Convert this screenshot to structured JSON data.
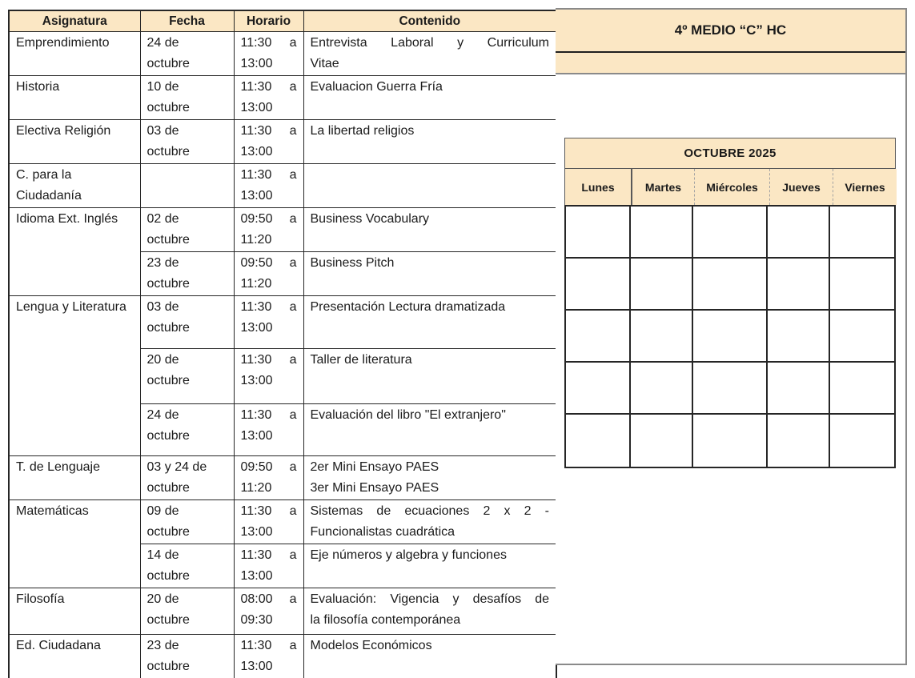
{
  "document": {
    "schedule": {
      "headers": [
        "Asignatura",
        "Fecha",
        "Horario",
        "Contenido"
      ],
      "sections": [
        {
          "asignatura": "Emprendimiento",
          "entries": [
            {
              "fecha": [
                "24 de",
                "octubre"
              ],
              "horario": [
                "11:30 a",
                "13:00"
              ],
              "contenido": [
                {
                  "text": "Entrevista Laboral y Curriculum",
                  "j": true
                },
                {
                  "text": "Vitae"
                }
              ]
            }
          ]
        },
        {
          "asignatura": "Historia",
          "entries": [
            {
              "fecha": [
                "10 de",
                "octubre"
              ],
              "horario": [
                "11:30 a",
                "13:00"
              ],
              "contenido": [
                {
                  "text": "Evaluacion Guerra Fría"
                }
              ]
            }
          ]
        },
        {
          "asignatura": "Electiva Religión",
          "entries": [
            {
              "fecha": [
                "03 de",
                "octubre"
              ],
              "horario": [
                "11:30 a",
                "13:00"
              ],
              "contenido": [
                {
                  "text": "La libertad religios"
                }
              ]
            }
          ]
        },
        {
          "asignatura": "C. para la Ciudadanía",
          "entries": [
            {
              "fecha": [],
              "horario": [
                "11:30 a",
                "13:00"
              ],
              "contenido": []
            }
          ]
        },
        {
          "asignatura": "Idioma Ext. Inglés",
          "entries": [
            {
              "fecha": [
                "02 de",
                "octubre"
              ],
              "horario": [
                "09:50 a",
                "11:20"
              ],
              "contenido": [
                {
                  "text": "Business Vocabulary"
                }
              ]
            },
            {
              "fecha": [
                "23 de",
                "octubre"
              ],
              "horario": [
                "09:50 a",
                "11:20"
              ],
              "contenido": [
                {
                  "text": "Business Pitch"
                }
              ]
            }
          ]
        },
        {
          "asignatura": "Lengua y Literatura",
          "entries": [
            {
              "fecha": [
                "03 de",
                "octubre"
              ],
              "horario": [
                "11:30 a",
                "13:00"
              ],
              "contenido": [
                {
                  "text": "Presentación Lectura dramatizada"
                }
              ]
            },
            {
              "fecha": [
                "20 de",
                "octubre"
              ],
              "horario": [
                "11:30 a",
                "13:00"
              ],
              "contenido": [
                {
                  "text": "Taller de literatura"
                }
              ]
            },
            {
              "fecha": [
                "24 de",
                "octubre"
              ],
              "horario": [
                "11:30 a",
                "13:00"
              ],
              "contenido": [
                {
                  "text": "Evaluación del libro \"El extranjero\""
                }
              ]
            }
          ]
        },
        {
          "asignatura": "T. de Lenguaje",
          "entries": [
            {
              "fecha": [
                "03 y 24 de",
                "octubre"
              ],
              "horario": [
                "09:50 a",
                "11:20"
              ],
              "contenido": [
                {
                  "text": "2er Mini Ensayo PAES"
                },
                {
                  "text": "3er Mini Ensayo PAES"
                }
              ]
            }
          ]
        },
        {
          "asignatura": "Matemáticas",
          "entries": [
            {
              "fecha": [
                "09 de",
                "octubre"
              ],
              "horario": [
                "11:30 a",
                "13:00"
              ],
              "contenido": [
                {
                  "text": "Sistemas de ecuaciones 2 x 2 -",
                  "j": true
                },
                {
                  "text": "Funcionalistas cuadrática"
                }
              ]
            },
            {
              "fecha": [
                "14 de",
                "octubre"
              ],
              "horario": [
                "11:30 a",
                "13:00"
              ],
              "contenido": [
                {
                  "text": "Eje números y algebra y funciones"
                }
              ]
            }
          ]
        },
        {
          "asignatura": "Filosofía",
          "entries": [
            {
              "fecha": [
                "20 de",
                "octubre"
              ],
              "horario": [
                "08:00 a",
                "09:30"
              ],
              "contenido": [
                {
                  "text": "Evaluación: Vigencia y desafíos de",
                  "j": true
                },
                {
                  "text": "la filosofía contemporánea"
                }
              ]
            }
          ]
        },
        {
          "asignatura": "Ed. Ciudadana",
          "entries": [
            {
              "fecha": [
                "23 de",
                "octubre"
              ],
              "horario": [
                "11:30 a",
                "13:00"
              ],
              "contenido": [
                {
                  "text": "Modelos Económicos"
                }
              ]
            }
          ]
        }
      ]
    },
    "side_panel": {
      "class_banner": "4º MEDIO “C” HC",
      "calendar": {
        "title": "OCTUBRE 2025",
        "day_headers": [
          "Lunes",
          "Martes",
          "Miércoles",
          "Jueves",
          "Viernes"
        ],
        "week_rows": 5
      }
    },
    "colors": {
      "header_fill": "#fbe7c4",
      "table_border": "#262626",
      "outer_frame": "#8a8a8a",
      "text": "#1b1b1b"
    }
  }
}
